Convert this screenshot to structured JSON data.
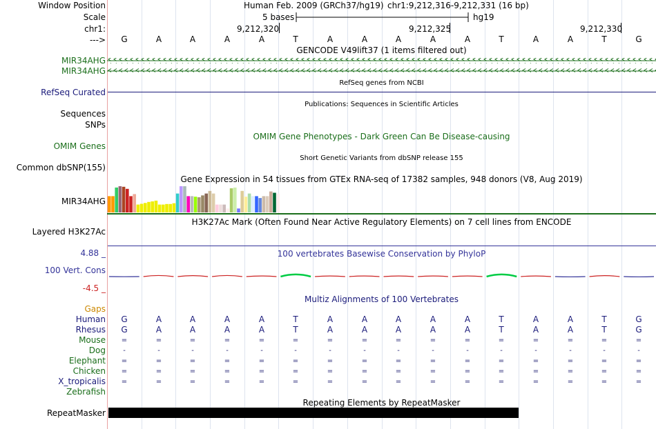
{
  "header": {
    "window_position_label": "Window Position",
    "assembly_text": "Human Feb. 2009 (GRCh37/hg19)",
    "position_text": "chr1:9,212,316-9,212,331 (16 bp)",
    "scale_label": "Scale",
    "scale_text": "5 bases",
    "scale_assembly": "hg19",
    "chrom_label": "chr1:",
    "coords": [
      "9,212,320",
      "9,212,325",
      "9,212,330"
    ],
    "strand_label": "--->"
  },
  "sequence": [
    "G",
    "A",
    "A",
    "A",
    "A",
    "T",
    "A",
    "A",
    "A",
    "A",
    "A",
    "T",
    "A",
    "A",
    "T",
    "G"
  ],
  "tracks": {
    "gencode": {
      "title": "GENCODE V49lift37 (1 items filtered out)",
      "items": [
        "MIR34AHG",
        "MIR34AHG"
      ],
      "color": "#1a6e1a"
    },
    "refseq": {
      "title": "RefSeq genes from NCBI",
      "label": "RefSeq Curated",
      "color": "#1a1a7a"
    },
    "publications": {
      "title": "Publications: Sequences in Scientific Articles",
      "label": "Sequences"
    },
    "snps_label": "SNPs",
    "omim": {
      "title": "OMIM Gene Phenotypes - Dark Green Can Be Disease-causing",
      "label": "OMIM Genes",
      "color": "#1a6e1a"
    },
    "dbsnp": {
      "title": "Short Genetic Variants from dbSNP release 155",
      "label": "Common dbSNP(155)"
    },
    "gtex": {
      "title": "Gene Expression in 54 tissues from GTEx RNA-seq of 17382 samples, 948 donors (V8, Aug 2019)",
      "label": "MIR34AHG",
      "bars": [
        {
          "color": "#ff9900",
          "value": 0.62
        },
        {
          "color": "#ff9900",
          "value": 0.62
        },
        {
          "color": "#33cc66",
          "value": 0.95
        },
        {
          "color": "#996677",
          "value": 1.0
        },
        {
          "color": "#aa4422",
          "value": 0.98
        },
        {
          "color": "#cc2222",
          "value": 0.9
        },
        {
          "color": "#cc2222",
          "value": 0.62
        },
        {
          "color": "#eeaa99",
          "value": 0.7
        },
        {
          "color": "#eeee00",
          "value": 0.3
        },
        {
          "color": "#eeee00",
          "value": 0.33
        },
        {
          "color": "#eeee00",
          "value": 0.36
        },
        {
          "color": "#eeee00",
          "value": 0.4
        },
        {
          "color": "#eeee00",
          "value": 0.42
        },
        {
          "color": "#eeee00",
          "value": 0.45
        },
        {
          "color": "#eeee00",
          "value": 0.3
        },
        {
          "color": "#eeee00",
          "value": 0.3
        },
        {
          "color": "#eeee00",
          "value": 0.32
        },
        {
          "color": "#eeee00",
          "value": 0.32
        },
        {
          "color": "#eeee00",
          "value": 0.35
        },
        {
          "color": "#33cccc",
          "value": 0.72
        },
        {
          "color": "#bb99ff",
          "value": 1.0
        },
        {
          "color": "#aabbbb",
          "value": 1.0
        },
        {
          "color": "#ff00bb",
          "value": 0.62
        },
        {
          "color": "#bbbbbb",
          "value": 0.62
        },
        {
          "color": "#99ff00",
          "value": 0.6
        },
        {
          "color": "#aa9977",
          "value": 0.58
        },
        {
          "color": "#998866",
          "value": 0.65
        },
        {
          "color": "#886655",
          "value": 0.72
        },
        {
          "color": "#ccbb99",
          "value": 0.82
        },
        {
          "color": "#ddccaa",
          "value": 0.72
        },
        {
          "color": "#ffccdd",
          "value": 0.3
        },
        {
          "color": "#eedddd",
          "value": 0.3
        },
        {
          "color": "#ccbbbb",
          "value": 0.3
        },
        {
          "color": "#ffeeee",
          "value": 0.15
        },
        {
          "color": "#aacc66",
          "value": 0.92
        },
        {
          "color": "#cceeaa",
          "value": 0.95
        },
        {
          "color": "#7777ff",
          "value": 0.15
        },
        {
          "color": "#ddcc99",
          "value": 0.82
        },
        {
          "color": "#ffee99",
          "value": 0.6
        },
        {
          "color": "#aaddaa",
          "value": 0.72
        },
        {
          "color": "#ddeeff",
          "value": 0.62
        },
        {
          "color": "#3366ff",
          "value": 0.62
        },
        {
          "color": "#6688dd",
          "value": 0.55
        },
        {
          "color": "#ccbbaa",
          "value": 0.62
        },
        {
          "color": "#ddccbb",
          "value": 0.62
        },
        {
          "color": "#ccaa99",
          "value": 0.8
        },
        {
          "color": "#006633",
          "value": 0.75
        },
        {
          "color": "#ffeeee",
          "value": 0.72
        }
      ]
    },
    "h3k27ac": {
      "title": "H3K27Ac Mark (Often Found Near Active Regulatory Elements) on 7 cell lines from ENCODE",
      "label": "Layered H3K27Ac"
    },
    "phylop": {
      "title": "100 vertebrates Basewise Conservation by PhyloP",
      "label": "100 Vert. Cons",
      "max_label": "4.88 _",
      "min_label": "-4.5 _",
      "color": "#333399",
      "scores": [
        -0.05,
        0.35,
        0.3,
        0.35,
        0.2,
        0.7,
        0.2,
        0.2,
        0.2,
        0.2,
        0.2,
        0.7,
        0.2,
        -0.1,
        0.3,
        -0.1
      ]
    },
    "multiz": {
      "title": "Multiz Alignments of 100 Vertebrates",
      "gaps_label": "Gaps",
      "gaps_color": "#cc8800",
      "species": [
        {
          "name": "Human",
          "color": "#1a1a7a",
          "row": [
            "G",
            "A",
            "A",
            "A",
            "A",
            "T",
            "A",
            "A",
            "A",
            "A",
            "A",
            "T",
            "A",
            "A",
            "T",
            "G"
          ]
        },
        {
          "name": "Rhesus",
          "color": "#1a1a7a",
          "row": [
            "G",
            "A",
            "A",
            "A",
            "A",
            "T",
            "A",
            "A",
            "A",
            "A",
            "A",
            "T",
            "A",
            "A",
            "T",
            "G"
          ]
        },
        {
          "name": "Mouse",
          "color": "#1a6e1a",
          "row": [
            "=",
            "=",
            "=",
            "=",
            "=",
            "=",
            "=",
            "=",
            "=",
            "=",
            "=",
            "=",
            "=",
            "=",
            "=",
            "="
          ]
        },
        {
          "name": "Dog",
          "color": "#1a6e1a",
          "row": [
            "-",
            "-",
            "-",
            "-",
            "-",
            "-",
            "-",
            "-",
            "-",
            "-",
            "-",
            "-",
            "-",
            "-",
            "-",
            "-"
          ]
        },
        {
          "name": "Elephant",
          "color": "#1a6e1a",
          "row": [
            "=",
            "=",
            "=",
            "=",
            "=",
            "=",
            "=",
            "=",
            "=",
            "=",
            "=",
            "=",
            "=",
            "=",
            "=",
            "="
          ]
        },
        {
          "name": "Chicken",
          "color": "#1a6e1a",
          "row": [
            "=",
            "=",
            "=",
            "=",
            "=",
            "=",
            "=",
            "=",
            "=",
            "=",
            "=",
            "=",
            "=",
            "=",
            "=",
            "="
          ]
        },
        {
          "name": "X_tropicalis",
          "color": "#1a1a7a",
          "row": [
            "=",
            "=",
            "=",
            "=",
            "=",
            "=",
            "=",
            "=",
            "=",
            "=",
            "=",
            "=",
            "=",
            "=",
            "=",
            "="
          ]
        },
        {
          "name": "Zebrafish",
          "color": "#1a6e1a",
          "row": []
        }
      ]
    },
    "repeatmasker": {
      "title": "Repeating Elements by RepeatMasker",
      "label": "RepeatMasker",
      "extent_bases": 12
    }
  }
}
